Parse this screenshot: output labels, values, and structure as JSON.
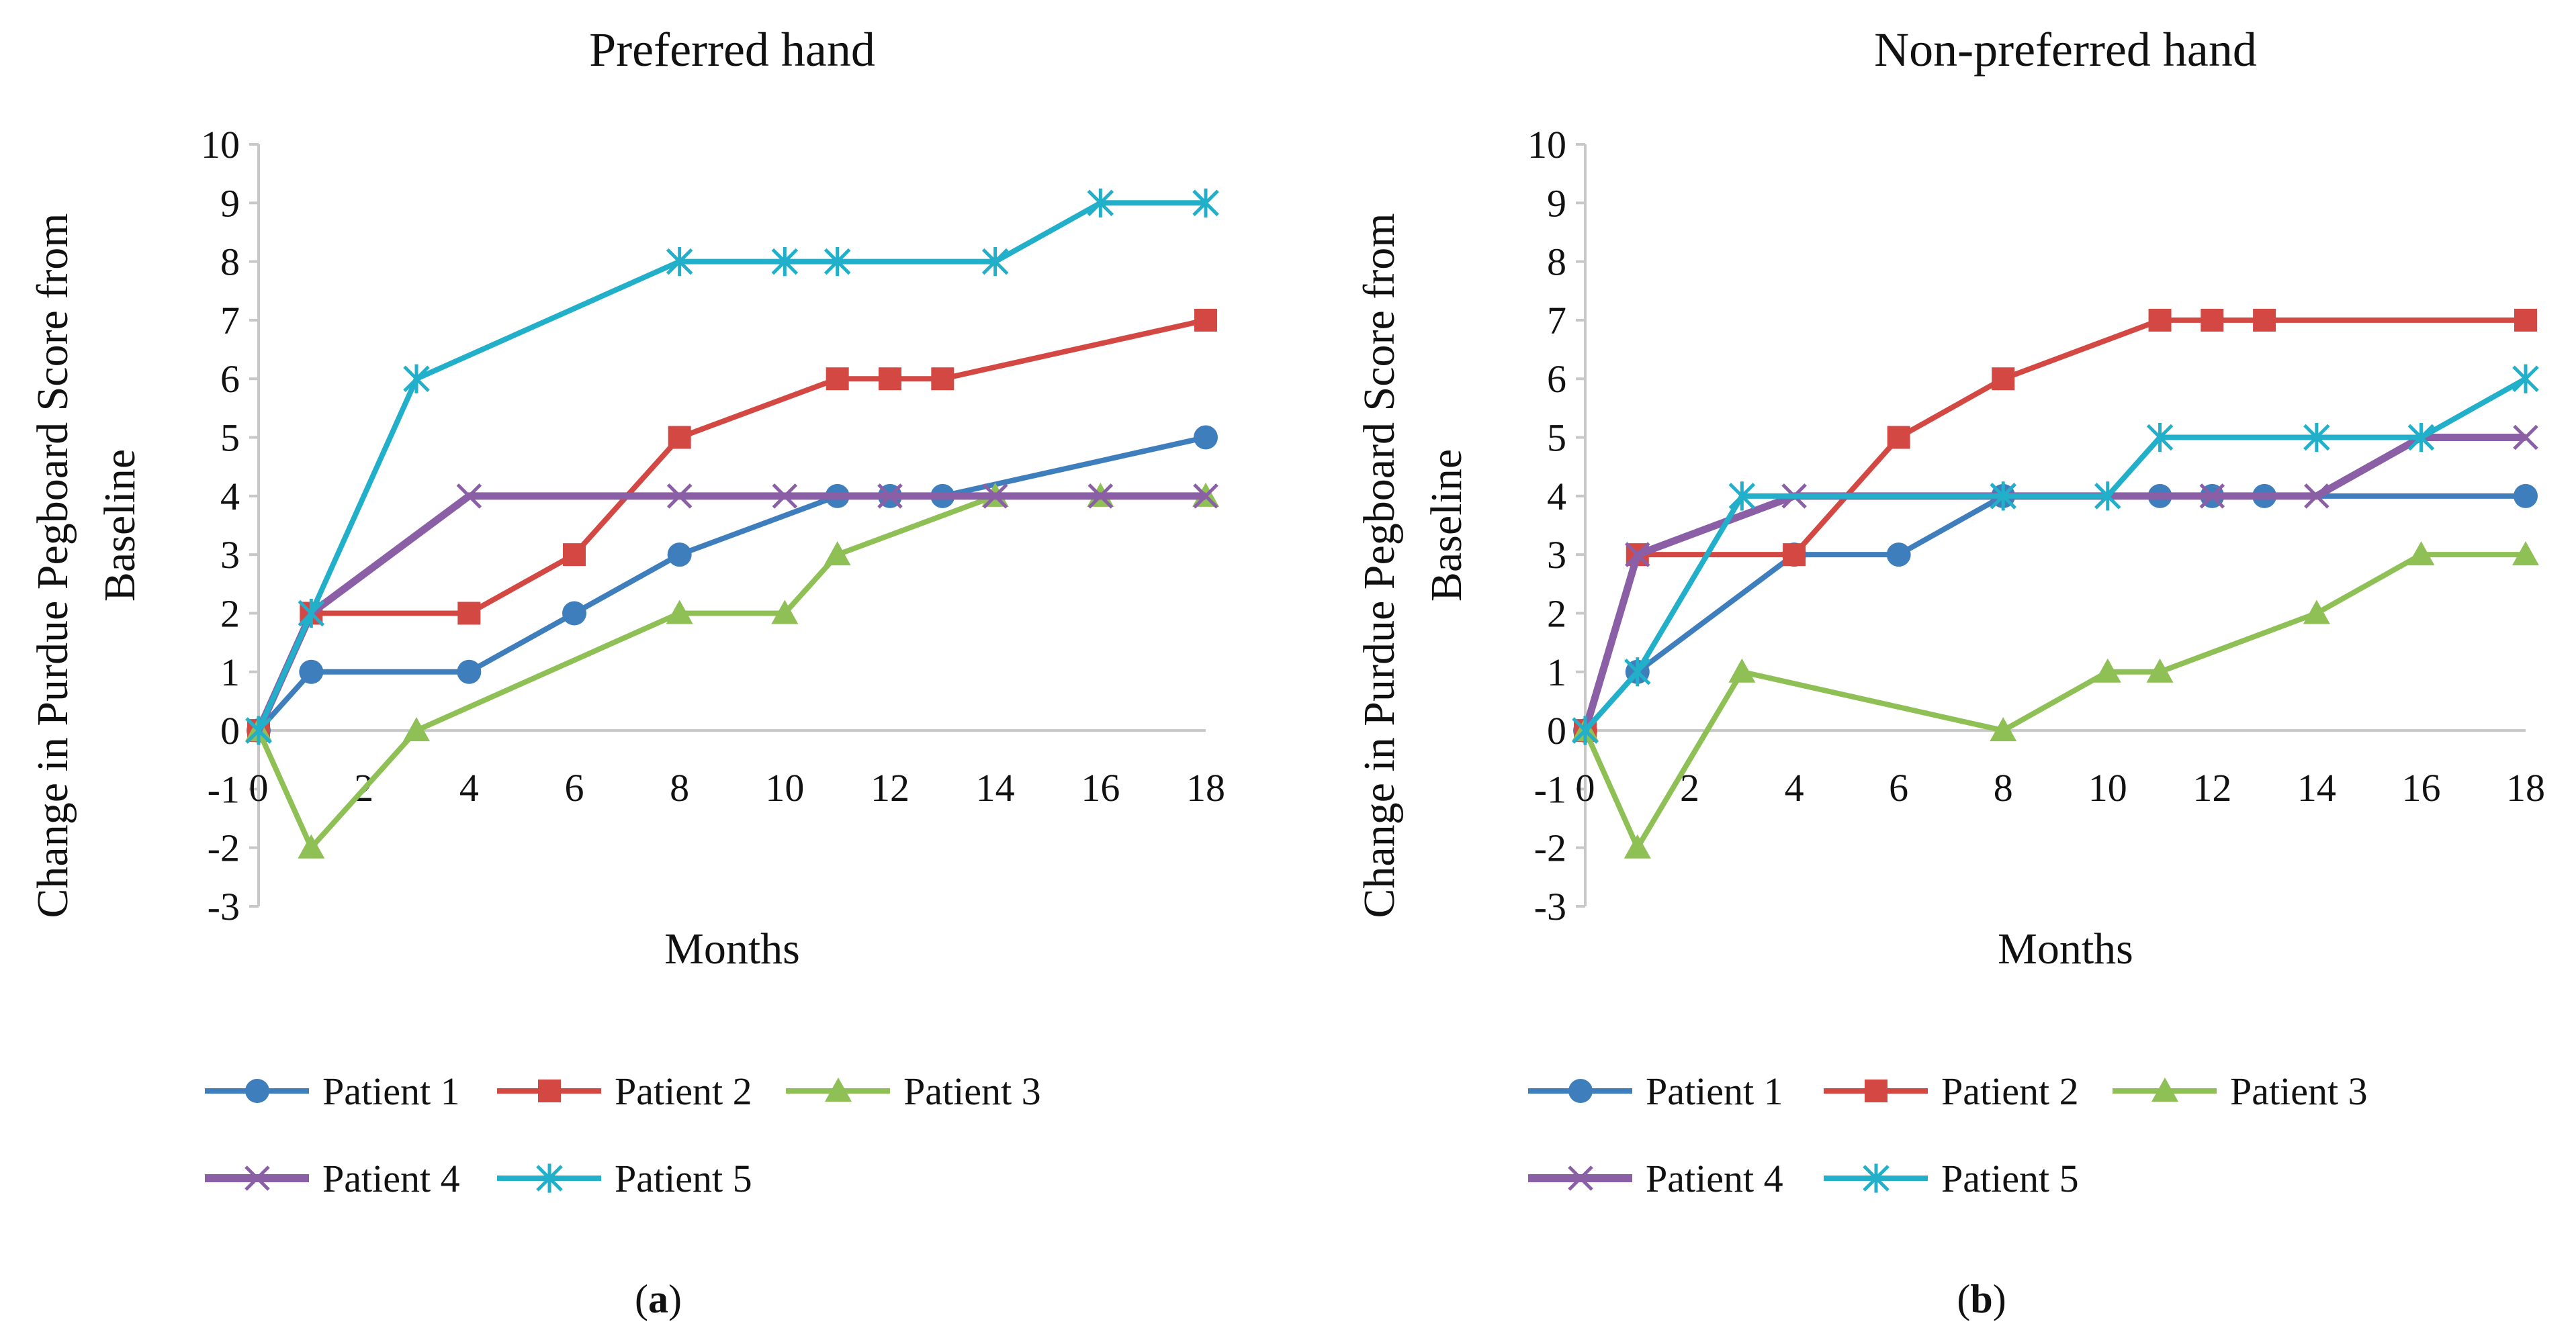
{
  "figure": {
    "captions": [
      {
        "open": "(",
        "letter": "a",
        "close": ")"
      },
      {
        "open": "(",
        "letter": "b",
        "close": ")"
      }
    ]
  },
  "series_style": [
    {
      "name": "Patient 1",
      "color": "#3F7EBC",
      "marker": "circle"
    },
    {
      "name": "Patient 2",
      "color": "#D44843",
      "marker": "square"
    },
    {
      "name": "Patient 3",
      "color": "#8FC056",
      "marker": "triangle"
    },
    {
      "name": "Patient 4",
      "color": "#8B5FA6",
      "marker": "x"
    },
    {
      "name": "Patient 5",
      "color": "#22AFC9",
      "marker": "star"
    }
  ],
  "chart_data": [
    {
      "type": "line",
      "title": "Preferred hand",
      "xlabel": "Months",
      "ylabel_lines": [
        "Change in Purdue Pegboard Score from",
        "Baseline"
      ],
      "xlim": [
        0,
        18
      ],
      "ylim": [
        -3,
        10
      ],
      "xticks": [
        0,
        2,
        4,
        6,
        8,
        10,
        12,
        14,
        16,
        18
      ],
      "yticks": [
        -3,
        -2,
        -1,
        0,
        1,
        2,
        3,
        4,
        5,
        6,
        7,
        8,
        9,
        10
      ],
      "grid": false,
      "legend_position": "bottom",
      "series": [
        {
          "name": "Patient 1",
          "x": [
            0,
            1,
            4,
            6,
            8,
            11,
            12,
            13,
            18
          ],
          "y": [
            0,
            1,
            1,
            2,
            3,
            4,
            4,
            4,
            5
          ]
        },
        {
          "name": "Patient 2",
          "x": [
            0,
            1,
            4,
            6,
            8,
            11,
            12,
            13,
            18
          ],
          "y": [
            0,
            2,
            2,
            3,
            5,
            6,
            6,
            6,
            7
          ]
        },
        {
          "name": "Patient 3",
          "x": [
            0,
            1,
            3,
            8,
            10,
            11,
            14,
            16,
            18
          ],
          "y": [
            0,
            -2,
            0,
            2,
            2,
            3,
            4,
            4,
            4
          ]
        },
        {
          "name": "Patient 4",
          "x": [
            0,
            1,
            4,
            8,
            10,
            12,
            14,
            16,
            18
          ],
          "y": [
            0,
            2,
            4,
            4,
            4,
            4,
            4,
            4,
            4
          ]
        },
        {
          "name": "Patient 5",
          "x": [
            0,
            1,
            3,
            8,
            10,
            11,
            14,
            16,
            18
          ],
          "y": [
            0,
            2,
            6,
            8,
            8,
            8,
            8,
            9,
            9
          ]
        }
      ]
    },
    {
      "type": "line",
      "title": "Non-preferred hand",
      "xlabel": "Months",
      "ylabel_lines": [
        "Change in Purdue Pegboard Score from",
        "Baseline"
      ],
      "xlim": [
        0,
        18
      ],
      "ylim": [
        -3,
        10
      ],
      "xticks": [
        0,
        2,
        4,
        6,
        8,
        10,
        12,
        14,
        16,
        18
      ],
      "yticks": [
        -3,
        -2,
        -1,
        0,
        1,
        2,
        3,
        4,
        5,
        6,
        7,
        8,
        9,
        10
      ],
      "grid": false,
      "legend_position": "bottom",
      "series": [
        {
          "name": "Patient 1",
          "x": [
            0,
            1,
            4,
            6,
            8,
            11,
            12,
            13,
            18
          ],
          "y": [
            0,
            1,
            3,
            3,
            4,
            4,
            4,
            4,
            4
          ]
        },
        {
          "name": "Patient 2",
          "x": [
            0,
            1,
            4,
            6,
            8,
            11,
            12,
            13,
            18
          ],
          "y": [
            0,
            3,
            3,
            5,
            6,
            7,
            7,
            7,
            7
          ]
        },
        {
          "name": "Patient 3",
          "x": [
            0,
            1,
            3,
            8,
            10,
            11,
            14,
            16,
            18
          ],
          "y": [
            0,
            -2,
            1,
            0,
            1,
            1,
            2,
            3,
            3
          ]
        },
        {
          "name": "Patient 4",
          "x": [
            0,
            1,
            4,
            8,
            10,
            12,
            14,
            16,
            18
          ],
          "y": [
            0,
            3,
            4,
            4,
            4,
            4,
            4,
            5,
            5
          ]
        },
        {
          "name": "Patient 5",
          "x": [
            0,
            1,
            3,
            8,
            10,
            11,
            14,
            16,
            18
          ],
          "y": [
            0,
            1,
            4,
            4,
            4,
            5,
            5,
            5,
            6
          ]
        }
      ]
    }
  ]
}
